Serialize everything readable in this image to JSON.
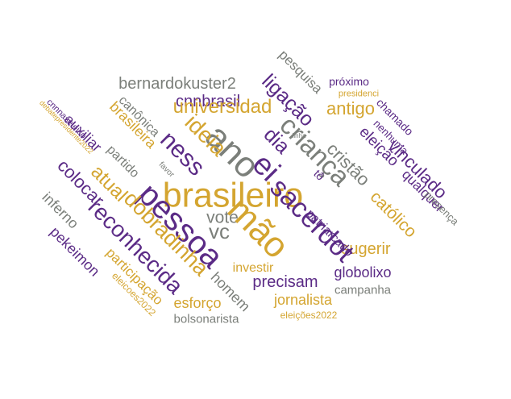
{
  "colors": {
    "purple": "#5b2b86",
    "gold": "#d4a530",
    "gray": "#7b7f7a"
  },
  "words": [
    "brasileiro",
    "pessoa",
    "mão",
    "ano",
    "criança",
    "sacerdot",
    "ei",
    "ness",
    "ideia",
    "dia",
    "reconhecida",
    "dobradinha",
    "atual",
    "universidad",
    "cristão",
    "vinculado",
    "ligação",
    "vc",
    "vote",
    "bernardokuster2",
    "colocar",
    "católico",
    "eleição",
    "antigo",
    "sugerir",
    "precisam",
    "investir",
    "globolixo",
    "jornalista",
    "esforço",
    "participação",
    "pekeimon",
    "auxiliar",
    "inferno",
    "partido",
    "homem",
    "patriarcado",
    "qualquer",
    "cnnbrasil",
    "pesquisa",
    "próximo",
    "chamado",
    "nenhuma",
    "presença",
    "brasileira",
    "canônica",
    "campanha",
    "bolsonarista",
    "eleições2022",
    "eleicoes2022",
    "presidenci",
    "cnnnaseleico",
    "debatepresidente2022",
    "favor",
    "tô",
    "linha"
  ]
}
